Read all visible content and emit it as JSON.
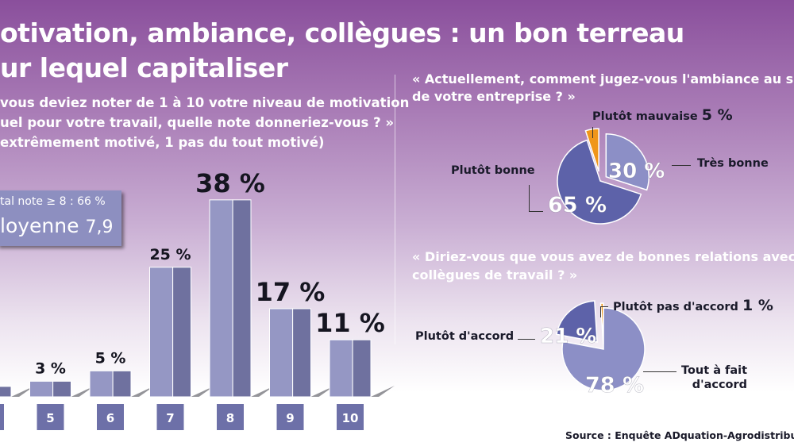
{
  "title": {
    "line1": "otivation, ambiance, collègues : un bon terreau",
    "line2": "ur lequel capitaliser"
  },
  "chart_data": [
    {
      "type": "bar",
      "question": [
        "vous deviez noter de 1 à 10 votre niveau de motivation",
        "uel pour votre travail, quelle note donneriez-vous ? »",
        "extrêmement motivé, 1 pas du tout motivé)"
      ],
      "categories": [
        "4",
        "5",
        "6",
        "7",
        "8",
        "9",
        "10"
      ],
      "values": [
        2,
        3,
        5,
        25,
        38,
        17,
        11
      ],
      "value_labels": [
        "",
        "3 %",
        "5 %",
        "25 %",
        "38 %",
        "17 %",
        "11 %"
      ],
      "ylim": [
        0,
        40
      ],
      "summary": {
        "total": "tal note ≥ 8 : 66 %",
        "mean_label": "loyenne",
        "mean_value": "7,9"
      }
    },
    {
      "type": "pie",
      "question": [
        "« Actuellement, comment jugez-vous l'ambiance au s",
        "de votre entreprise ? »"
      ],
      "slices": [
        {
          "label": "Très bonne",
          "value": 30,
          "value_label": "30 %",
          "color": "#8c8fc6"
        },
        {
          "label": "Plutôt bonne",
          "value": 65,
          "value_label": "65 %",
          "color": "#5d62a9"
        },
        {
          "label": "Plutôt mauvaise",
          "value": 5,
          "value_label": "5 %",
          "color": "#f0961a"
        }
      ]
    },
    {
      "type": "pie",
      "question": [
        "« Diriez-vous que vous avez de bonnes relations avec",
        "collègues de travail ? »"
      ],
      "slices": [
        {
          "label": "Tout à fait d'accord",
          "label_lines": [
            "Tout à fait",
            "d'accord"
          ],
          "value": 78,
          "value_label": "78 %",
          "color": "#8c8fc6"
        },
        {
          "label": "Plutôt d'accord",
          "value": 21,
          "value_label": "21 %",
          "color": "#5d62a9"
        },
        {
          "label": "Plutôt pas d'accord",
          "value": 1,
          "value_label": "1 %",
          "color": "#f0961a"
        }
      ]
    }
  ],
  "source": "Source : Enquête ADquation-Agrodistribution,"
}
